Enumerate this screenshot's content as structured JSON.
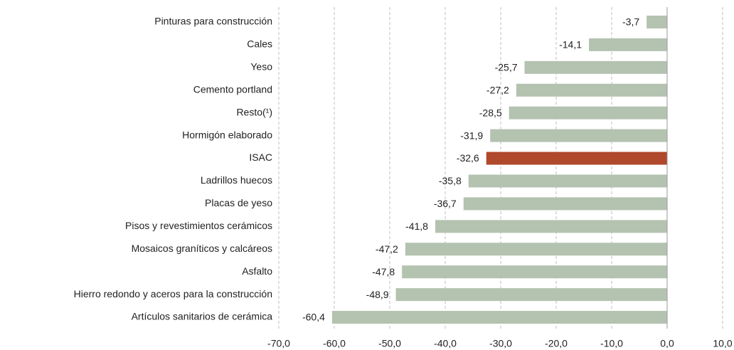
{
  "chart_data": {
    "type": "hbar",
    "categories": [
      "Pinturas para construcción",
      "Cales",
      "Yeso",
      "Cemento portland",
      "Resto(¹)",
      "Hormigón elaborado",
      "ISAC",
      "Ladrillos huecos",
      "Placas de yeso",
      "Pisos y revestimientos cerámicos",
      "Mosaicos graníticos y calcáreos",
      "Asfalto",
      "Hierro redondo y aceros para la construcción",
      "Artículos sanitarios de cerámica"
    ],
    "values": [
      -3.7,
      -14.1,
      -25.7,
      -27.2,
      -28.5,
      -31.9,
      -32.6,
      -35.8,
      -36.7,
      -41.8,
      -47.2,
      -47.8,
      -48.9,
      -60.4
    ],
    "value_labels": [
      "-3,7",
      "-14,1",
      "-25,7",
      "-27,2",
      "-28,5",
      "-31,9",
      "-32,6",
      "-35,8",
      "-36,7",
      "-41,8",
      "-47,2",
      "-47,8",
      "-48,9",
      "-60,4"
    ],
    "colors": [
      "#b4c2b0",
      "#b4c2b0",
      "#b4c2b0",
      "#b4c2b0",
      "#b4c2b0",
      "#b4c2b0",
      "#b0482c",
      "#b4c2b0",
      "#b4c2b0",
      "#b4c2b0",
      "#b4c2b0",
      "#b4c2b0",
      "#b4c2b0",
      "#b4c2b0"
    ],
    "xlim": [
      -70,
      10
    ],
    "xticks": [
      {
        "value": -70,
        "label": "-70,0"
      },
      {
        "value": -60,
        "label": "-60,0"
      },
      {
        "value": -50,
        "label": "-50,0"
      },
      {
        "value": -40,
        "label": "-40,0"
      },
      {
        "value": -30,
        "label": "-30,0"
      },
      {
        "value": -20,
        "label": "-20,0"
      },
      {
        "value": -10,
        "label": "-10,0"
      },
      {
        "value": 0,
        "label": "0,0"
      },
      {
        "value": 10,
        "label": "10,0"
      }
    ],
    "grid": true
  }
}
